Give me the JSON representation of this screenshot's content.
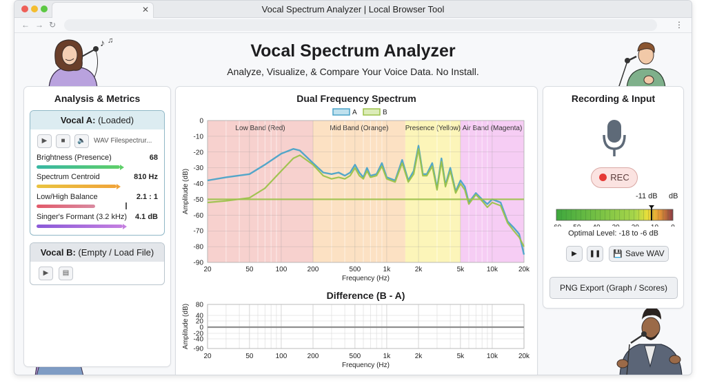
{
  "window": {
    "title": "Vocal Spectrum Analyzer | Local Browser Tool"
  },
  "header": {
    "title": "Vocal Spectrum Analyzer",
    "subtitle": "Analyze, Visualize, & Compare Your Voice Data. No Install."
  },
  "left_panel": {
    "title": "Analysis & Metrics",
    "vocal_a": {
      "name": "Vocal A:",
      "status": "(Loaded)",
      "file": "WAV Filespectrur...",
      "metrics": [
        {
          "label": "Brightness (Presence)",
          "value": "68",
          "fraction": 0.68
        },
        {
          "label": "Spectrum Centroid",
          "value": "810 Hz",
          "fraction": 0.65
        },
        {
          "label": "Low/High Balance",
          "value": "2.1 : 1",
          "fraction": 0.48
        },
        {
          "label": "Singer's Formant (3.2 kHz)",
          "value": "4.1 dB",
          "fraction": 0.7
        }
      ]
    },
    "vocal_b": {
      "name": "Vocal B:",
      "status": "(Empty / Load File)"
    }
  },
  "center_panel": {
    "title": "Dual Frequency Spectrum",
    "legend": [
      "A",
      "B"
    ],
    "bands": [
      "Low Band (Red)",
      "Mid Band (Orange)",
      "Presence (Yellow)",
      "Air Band (Magenta)"
    ],
    "ylabel": "Amplitude (dB)",
    "xlabel": "Frequency (Hz)",
    "diff_title": "Difference (B - A)",
    "diff_ylabel": "Amplitude (dB)",
    "diff_xlabel": "Frequency (Hz)"
  },
  "right_panel": {
    "title": "Recording & Input",
    "rec_label": "REC",
    "meter_value": "-11 dB",
    "meter_unit": "dB",
    "meter_ticks": [
      "-60",
      "-50",
      "-40",
      "-30",
      "-20",
      "-10",
      "0"
    ],
    "optimal": "Optimal Level: -18 to -6 dB",
    "save_label": "Save WAV",
    "export_label": "PNG Export (Graph / Scores)"
  },
  "colors": {
    "series_a": "#4aa3c8",
    "series_b": "#9cc24a",
    "low": "#f6c9c6",
    "mid": "#fbdcb8",
    "presence": "#fbf3ad",
    "air": "#f5c4f2"
  },
  "chart_data": [
    {
      "type": "line",
      "title": "Dual Frequency Spectrum",
      "xlabel": "Frequency (Hz)",
      "ylabel": "Amplitude (dB)",
      "x_scale": "log",
      "xlim": [
        20,
        20000
      ],
      "ylim": [
        -90,
        0
      ],
      "x_ticks": [
        "20",
        "50",
        "100",
        "200",
        "500",
        "1k",
        "2k",
        "5k",
        "10k",
        "20k"
      ],
      "y_ticks": [
        "0",
        "-10",
        "-20",
        "-30",
        "-40",
        "-50",
        "-60",
        "-70",
        "-80",
        "-90"
      ],
      "grid": true,
      "legend": "top-center",
      "bands": [
        {
          "name": "Low Band (Red)",
          "range": [
            20,
            200
          ]
        },
        {
          "name": "Mid Band (Orange)",
          "range": [
            200,
            1500
          ]
        },
        {
          "name": "Presence (Yellow)",
          "range": [
            1500,
            5000
          ]
        },
        {
          "name": "Air Band (Magenta)",
          "range": [
            5000,
            20000
          ]
        }
      ],
      "series": [
        {
          "name": "A",
          "x": [
            20,
            30,
            50,
            70,
            100,
            130,
            150,
            200,
            250,
            300,
            350,
            400,
            450,
            500,
            550,
            600,
            650,
            700,
            800,
            900,
            1000,
            1200,
            1400,
            1600,
            1800,
            2000,
            2200,
            2400,
            2700,
            3000,
            3300,
            3600,
            4000,
            4500,
            5000,
            5500,
            6000,
            7000,
            8000,
            9000,
            10000,
            12000,
            14000,
            16000,
            18000,
            20000
          ],
          "y": [
            -38,
            -36,
            -34,
            -28,
            -21,
            -18,
            -19,
            -27,
            -33,
            -34,
            -33,
            -35,
            -33,
            -28,
            -33,
            -36,
            -30,
            -35,
            -34,
            -27,
            -36,
            -38,
            -25,
            -38,
            -32,
            -16,
            -34,
            -34,
            -27,
            -43,
            -24,
            -41,
            -30,
            -45,
            -38,
            -42,
            -52,
            -46,
            -50,
            -53,
            -50,
            -52,
            -64,
            -68,
            -72,
            -85
          ]
        },
        {
          "name": "B",
          "x": [
            20,
            30,
            50,
            70,
            100,
            130,
            150,
            200,
            250,
            300,
            350,
            400,
            450,
            500,
            550,
            600,
            650,
            700,
            800,
            900,
            1000,
            1200,
            1400,
            1600,
            1800,
            2000,
            2200,
            2400,
            2700,
            3000,
            3300,
            3600,
            4000,
            4500,
            5000,
            5500,
            6000,
            7000,
            8000,
            9000,
            10000,
            12000,
            14000,
            16000,
            18000,
            20000
          ],
          "y": [
            -52,
            -51,
            -49,
            -43,
            -32,
            -24,
            -22,
            -28,
            -35,
            -37,
            -36,
            -37,
            -35,
            -30,
            -35,
            -37,
            -32,
            -36,
            -35,
            -29,
            -37,
            -39,
            -27,
            -39,
            -34,
            -18,
            -35,
            -35,
            -29,
            -44,
            -26,
            -42,
            -32,
            -46,
            -40,
            -44,
            -53,
            -47,
            -51,
            -55,
            -52,
            -54,
            -65,
            -70,
            -74,
            -80
          ]
        },
        {
          "name": "",
          "x": [
            20,
            20000
          ],
          "y": [
            -50,
            -50
          ]
        }
      ]
    },
    {
      "type": "line",
      "title": "Difference (B - A)",
      "xlabel": "Frequency (Hz)",
      "ylabel": "Amplitude (dB)",
      "x_scale": "log",
      "xlim": [
        20,
        20000
      ],
      "ylim": [
        -90,
        80
      ],
      "x_ticks": [
        "20",
        "50",
        "100",
        "200",
        "500",
        "1k",
        "2k",
        "5k",
        "10k",
        "20k"
      ],
      "y_ticks": [
        "80",
        "40",
        "20",
        "0",
        "-20",
        "-40",
        "-90"
      ],
      "grid": true,
      "series": [
        {
          "name": "",
          "x": [
            20,
            20000
          ],
          "y": [
            0,
            0
          ]
        }
      ]
    }
  ]
}
